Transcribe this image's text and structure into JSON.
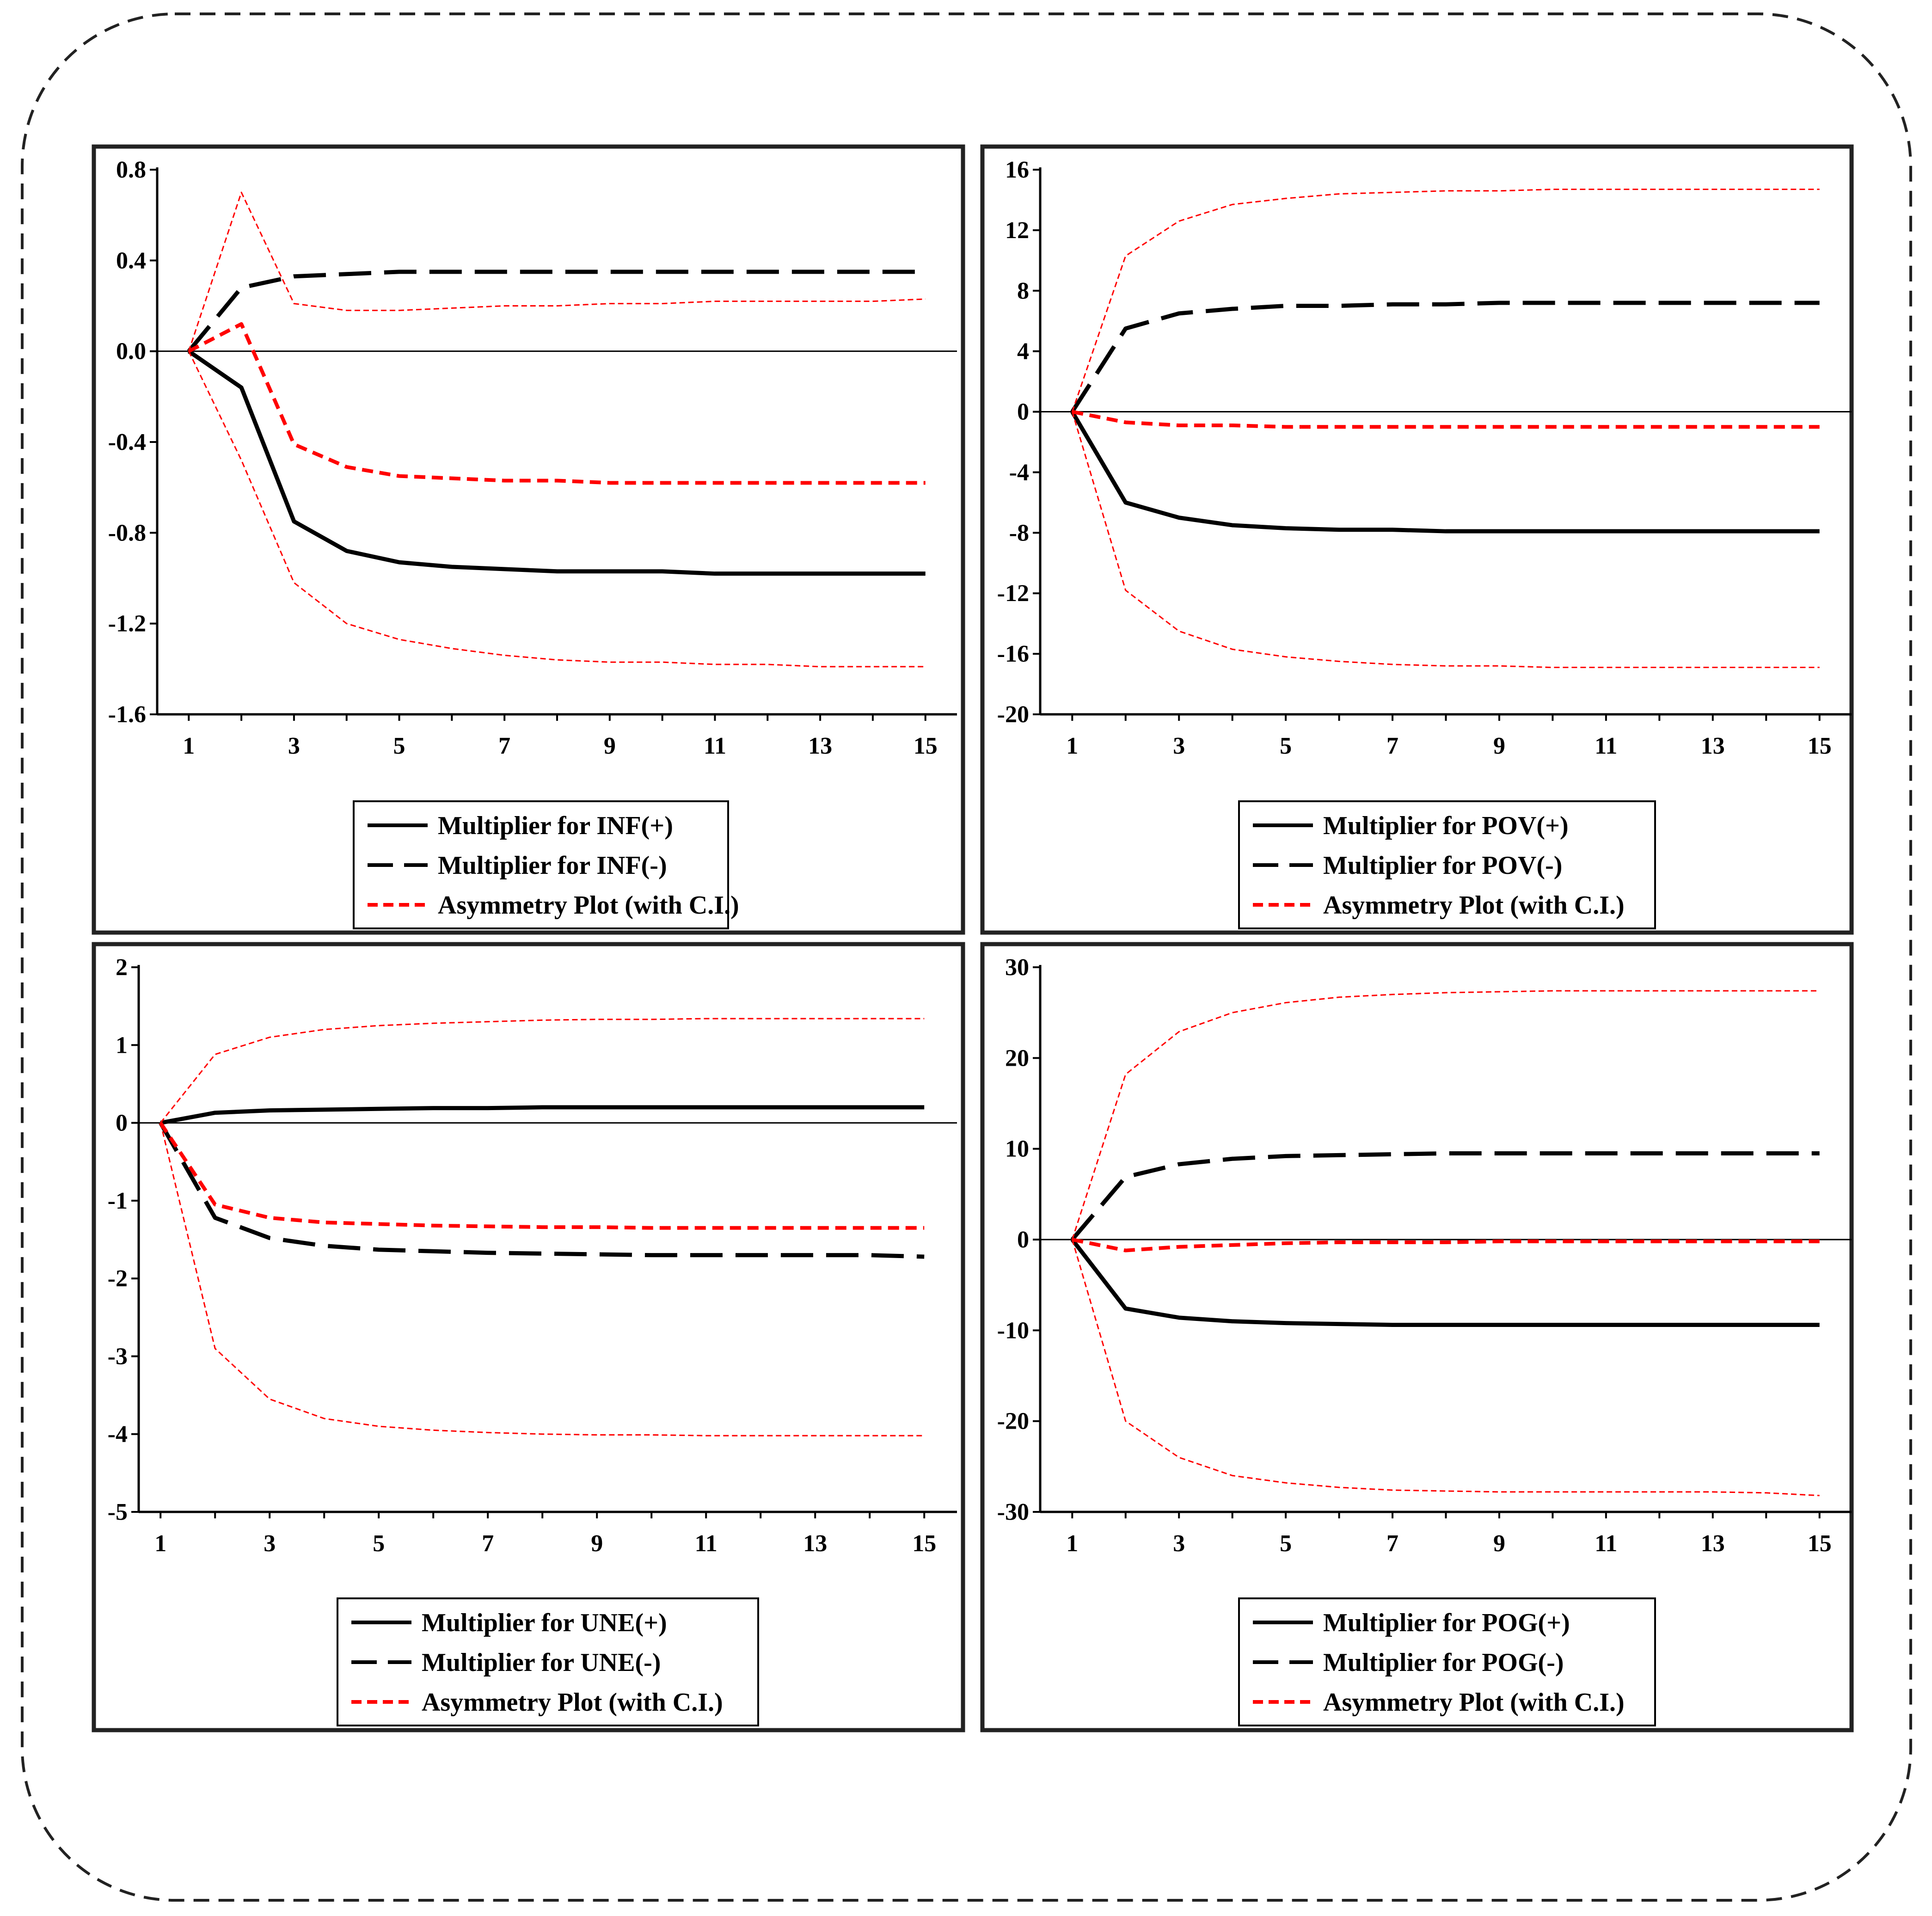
{
  "chart_data": [
    {
      "type": "line",
      "title": "",
      "xlabel": "",
      "ylabel": "",
      "x": [
        1,
        2,
        3,
        4,
        5,
        6,
        7,
        8,
        9,
        10,
        11,
        12,
        13,
        14,
        15
      ],
      "xticks": [
        "1",
        "3",
        "5",
        "7",
        "9",
        "11",
        "13",
        "15"
      ],
      "xlim": [
        0.4,
        15.6
      ],
      "ylim": [
        -1.6,
        0.8
      ],
      "yticks": [
        "0.8",
        "0.4",
        "0.0",
        "-0.4",
        "-0.8",
        "-1.2",
        "-1.6"
      ],
      "series": [
        {
          "name": "Multiplier for INF(+)",
          "style": "solid",
          "color": "#000000",
          "values": [
            0,
            -0.16,
            -0.75,
            -0.88,
            -0.93,
            -0.95,
            -0.96,
            -0.97,
            -0.97,
            -0.97,
            -0.98,
            -0.98,
            -0.98,
            -0.98,
            -0.98
          ]
        },
        {
          "name": "Multiplier for INF(-)",
          "style": "longdash",
          "color": "#000000",
          "values": [
            0,
            0.28,
            0.33,
            0.34,
            0.35,
            0.35,
            0.35,
            0.35,
            0.35,
            0.35,
            0.35,
            0.35,
            0.35,
            0.35,
            0.35
          ]
        },
        {
          "name": "Asymmetry Plot (with C.I.)",
          "style": "dashed",
          "color": "#ff0000",
          "values": [
            0,
            0.12,
            -0.41,
            -0.51,
            -0.55,
            -0.56,
            -0.57,
            -0.57,
            -0.58,
            -0.58,
            -0.58,
            -0.58,
            -0.58,
            -0.58,
            -0.58
          ]
        },
        {
          "name": "",
          "style": "dotted",
          "color": "#ff0000",
          "values": [
            0,
            0.7,
            0.21,
            0.18,
            0.18,
            0.19,
            0.2,
            0.2,
            0.21,
            0.21,
            0.22,
            0.22,
            0.22,
            0.22,
            0.23
          ]
        },
        {
          "name": "",
          "style": "dotted",
          "color": "#ff0000",
          "values": [
            0,
            -0.48,
            -1.02,
            -1.2,
            -1.27,
            -1.31,
            -1.34,
            -1.36,
            -1.37,
            -1.37,
            -1.38,
            -1.38,
            -1.39,
            -1.39,
            -1.39
          ]
        }
      ],
      "legend": [
        "Multiplier for INF(+)",
        "Multiplier for INF(-)",
        "Asymmetry Plot (with C.I.)"
      ],
      "legend_position": "bottom-center"
    },
    {
      "type": "line",
      "title": "",
      "xlabel": "",
      "ylabel": "",
      "x": [
        1,
        2,
        3,
        4,
        5,
        6,
        7,
        8,
        9,
        10,
        11,
        12,
        13,
        14,
        15
      ],
      "xticks": [
        "1",
        "3",
        "5",
        "7",
        "9",
        "11",
        "13",
        "15"
      ],
      "xlim": [
        0.4,
        15.6
      ],
      "ylim": [
        -20,
        16
      ],
      "yticks": [
        "16",
        "12",
        "8",
        "4",
        "0",
        "-4",
        "-8",
        "-12",
        "-16",
        "-20"
      ],
      "series": [
        {
          "name": "Multiplier for POV(+)",
          "style": "solid",
          "color": "#000000",
          "values": [
            0,
            -6,
            -7,
            -7.5,
            -7.7,
            -7.8,
            -7.8,
            -7.9,
            -7.9,
            -7.9,
            -7.9,
            -7.9,
            -7.9,
            -7.9,
            -7.9
          ]
        },
        {
          "name": "Multiplier for POV(-)",
          "style": "longdash",
          "color": "#000000",
          "values": [
            0,
            5.5,
            6.5,
            6.8,
            7,
            7,
            7.1,
            7.1,
            7.2,
            7.2,
            7.2,
            7.2,
            7.2,
            7.2,
            7.2
          ]
        },
        {
          "name": "Asymmetry Plot (with C.I.)",
          "style": "dashed",
          "color": "#ff0000",
          "values": [
            0,
            -0.7,
            -0.9,
            -0.9,
            -1,
            -1,
            -1,
            -1,
            -1,
            -1,
            -1,
            -1,
            -1,
            -1,
            -1
          ]
        },
        {
          "name": "",
          "style": "dotted",
          "color": "#ff0000",
          "values": [
            0,
            10.3,
            12.6,
            13.7,
            14.1,
            14.4,
            14.5,
            14.6,
            14.6,
            14.7,
            14.7,
            14.7,
            14.7,
            14.7,
            14.7
          ]
        },
        {
          "name": "",
          "style": "dotted",
          "color": "#ff0000",
          "values": [
            0,
            -11.8,
            -14.5,
            -15.7,
            -16.2,
            -16.5,
            -16.7,
            -16.8,
            -16.8,
            -16.9,
            -16.9,
            -16.9,
            -16.9,
            -16.9,
            -16.9
          ]
        }
      ],
      "legend": [
        "Multiplier for POV(+)",
        "Multiplier for POV(-)",
        "Asymmetry Plot (with C.I.)"
      ],
      "legend_position": "bottom-center"
    },
    {
      "type": "line",
      "title": "",
      "xlabel": "",
      "ylabel": "",
      "x": [
        1,
        2,
        3,
        4,
        5,
        6,
        7,
        8,
        9,
        10,
        11,
        12,
        13,
        14,
        15
      ],
      "xticks": [
        "1",
        "3",
        "5",
        "7",
        "9",
        "11",
        "13",
        "15"
      ],
      "xlim": [
        0.6,
        15.6
      ],
      "ylim": [
        -5,
        2
      ],
      "yticks": [
        "2",
        "1",
        "0",
        "-1",
        "-2",
        "-3",
        "-4",
        "-5"
      ],
      "series": [
        {
          "name": "Multiplier for UNE(+)",
          "style": "solid",
          "color": "#000000",
          "values": [
            0,
            0.13,
            0.16,
            0.17,
            0.18,
            0.19,
            0.19,
            0.2,
            0.2,
            0.2,
            0.2,
            0.2,
            0.2,
            0.2,
            0.2
          ]
        },
        {
          "name": "Multiplier for UNE(-)",
          "style": "longdash",
          "color": "#000000",
          "values": [
            0,
            -1.22,
            -1.48,
            -1.58,
            -1.63,
            -1.65,
            -1.67,
            -1.68,
            -1.69,
            -1.7,
            -1.7,
            -1.7,
            -1.7,
            -1.7,
            -1.72
          ]
        },
        {
          "name": "Asymmetry Plot (with C.I.)",
          "style": "dashed",
          "color": "#ff0000",
          "values": [
            0,
            -1.05,
            -1.22,
            -1.28,
            -1.3,
            -1.32,
            -1.33,
            -1.34,
            -1.34,
            -1.35,
            -1.35,
            -1.35,
            -1.35,
            -1.35,
            -1.35
          ]
        },
        {
          "name": "",
          "style": "dotted",
          "color": "#ff0000",
          "values": [
            0,
            0.88,
            1.1,
            1.2,
            1.25,
            1.28,
            1.3,
            1.32,
            1.33,
            1.33,
            1.34,
            1.34,
            1.34,
            1.34,
            1.34
          ]
        },
        {
          "name": "",
          "style": "dotted",
          "color": "#ff0000",
          "values": [
            0,
            -2.9,
            -3.55,
            -3.8,
            -3.9,
            -3.95,
            -3.98,
            -4,
            -4.01,
            -4.01,
            -4.02,
            -4.02,
            -4.02,
            -4.02,
            -4.02
          ]
        }
      ],
      "legend": [
        "Multiplier for UNE(+)",
        "Multiplier for UNE(-)",
        "Asymmetry Plot (with C.I.)"
      ],
      "legend_position": "bottom-center"
    },
    {
      "type": "line",
      "title": "",
      "xlabel": "",
      "ylabel": "",
      "x": [
        1,
        2,
        3,
        4,
        5,
        6,
        7,
        8,
        9,
        10,
        11,
        12,
        13,
        14,
        15
      ],
      "xticks": [
        "1",
        "3",
        "5",
        "7",
        "9",
        "11",
        "13",
        "15"
      ],
      "xlim": [
        0.4,
        15.6
      ],
      "ylim": [
        -30,
        30
      ],
      "yticks": [
        "30",
        "20",
        "10",
        "0",
        "-10",
        "-20",
        "-30"
      ],
      "series": [
        {
          "name": "Multiplier for POG(+)",
          "style": "solid",
          "color": "#000000",
          "values": [
            0,
            -7.6,
            -8.6,
            -9,
            -9.2,
            -9.3,
            -9.4,
            -9.4,
            -9.4,
            -9.4,
            -9.4,
            -9.4,
            -9.4,
            -9.4,
            -9.4
          ]
        },
        {
          "name": "Multiplier for POG(-)",
          "style": "longdash",
          "color": "#000000",
          "values": [
            0,
            6.9,
            8.3,
            8.9,
            9.2,
            9.3,
            9.4,
            9.5,
            9.5,
            9.5,
            9.5,
            9.5,
            9.5,
            9.5,
            9.5
          ]
        },
        {
          "name": "Asymmetry Plot (with C.I.)",
          "style": "dashed",
          "color": "#ff0000",
          "values": [
            0,
            -1.2,
            -0.8,
            -0.6,
            -0.4,
            -0.3,
            -0.3,
            -0.3,
            -0.2,
            -0.2,
            -0.2,
            -0.2,
            -0.2,
            -0.2,
            -0.2
          ]
        },
        {
          "name": "",
          "style": "dotted",
          "color": "#ff0000",
          "values": [
            0,
            18.2,
            22.9,
            25,
            26.1,
            26.7,
            27,
            27.2,
            27.3,
            27.4,
            27.4,
            27.4,
            27.4,
            27.4,
            27.4
          ]
        },
        {
          "name": "",
          "style": "dotted",
          "color": "#ff0000",
          "values": [
            0,
            -20,
            -24,
            -26,
            -26.8,
            -27.3,
            -27.6,
            -27.7,
            -27.8,
            -27.8,
            -27.8,
            -27.8,
            -27.8,
            -27.9,
            -28.2
          ]
        }
      ],
      "legend": [
        "Multiplier for POG(+)",
        "Multiplier for POG(-)",
        "Asymmetry Plot (with C.I.)"
      ],
      "legend_position": "bottom-center"
    }
  ]
}
